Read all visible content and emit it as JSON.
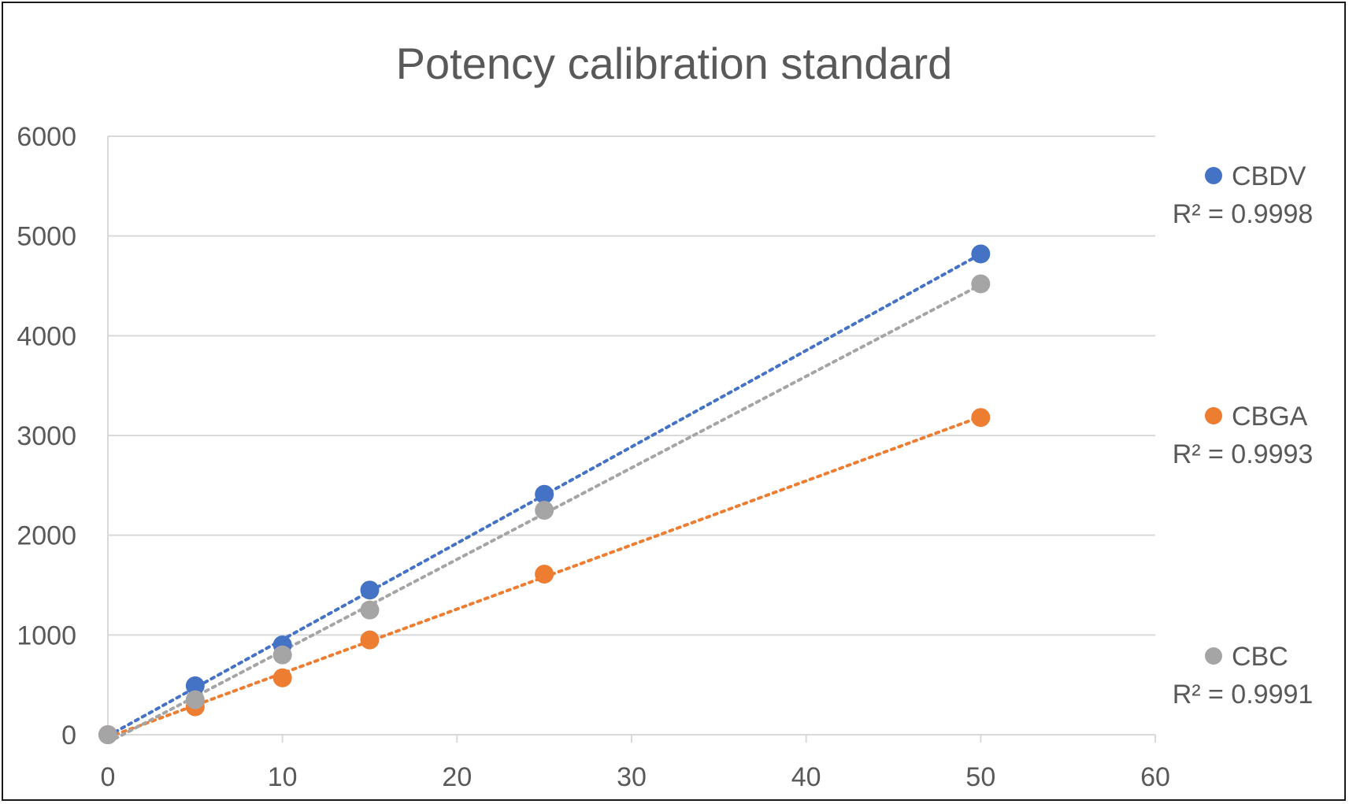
{
  "chart_data": {
    "type": "scatter",
    "title": "Potency calibration standard",
    "xlabel": "",
    "ylabel": "",
    "xlim": [
      0,
      60
    ],
    "ylim": [
      0,
      6000
    ],
    "x_ticks": [
      "0",
      "10",
      "20",
      "30",
      "40",
      "50",
      "60"
    ],
    "y_ticks": [
      "0",
      "1000",
      "2000",
      "3000",
      "4000",
      "5000",
      "6000"
    ],
    "grid": true,
    "legend_position": "right",
    "trendline": "linear (dotted)",
    "series": [
      {
        "name": "CBDV",
        "color": "#4472c4",
        "r2_label": "R² = 0.9998",
        "x": [
          0,
          5,
          10,
          15,
          25,
          50
        ],
        "y": [
          0,
          490,
          900,
          1450,
          2410,
          4820
        ]
      },
      {
        "name": "CBGA",
        "color": "#ed7d31",
        "r2_label": "R² = 0.9993",
        "x": [
          0,
          5,
          10,
          15,
          25,
          50
        ],
        "y": [
          0,
          280,
          570,
          950,
          1610,
          3180
        ]
      },
      {
        "name": "CBC",
        "color": "#a5a5a5",
        "r2_label": "R² = 0.9991",
        "x": [
          0,
          5,
          10,
          15,
          25,
          50
        ],
        "y": [
          0,
          350,
          800,
          1250,
          2250,
          4520
        ]
      }
    ]
  }
}
